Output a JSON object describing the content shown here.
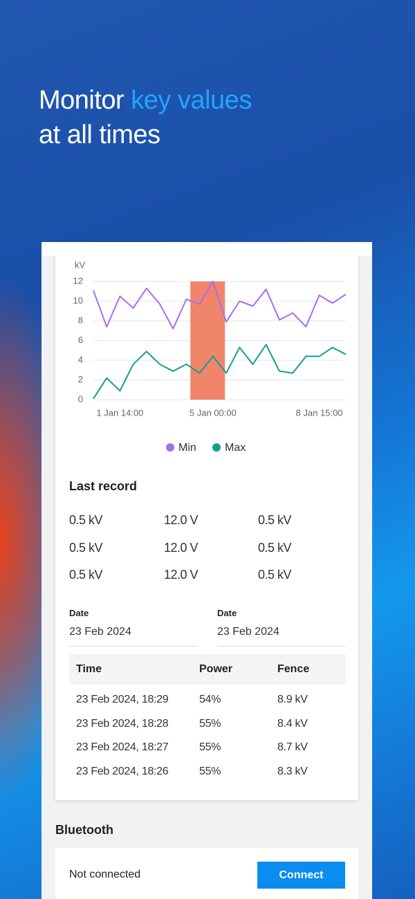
{
  "headline": {
    "lead": "Monitor",
    "highlight": "key values",
    "rest": "at all times"
  },
  "chart_data": {
    "type": "line",
    "y_label": "kV",
    "categories": [
      null,
      null,
      "1 Jan 14:00",
      null,
      null,
      null,
      null,
      null,
      null,
      "5 Jan 00:00",
      null,
      null,
      null,
      null,
      null,
      null,
      null,
      "8 Jan 15:00",
      null,
      null
    ],
    "series": [
      {
        "name": "Min",
        "color": "#a56ef0",
        "values": [
          11.1,
          7.4,
          10.5,
          9.3,
          11.3,
          9.7,
          7.2,
          10.2,
          9.7,
          12.0,
          7.9,
          10.0,
          9.5,
          11.2,
          8.1,
          8.8,
          7.4,
          10.6,
          9.8,
          10.7
        ]
      },
      {
        "name": "Max",
        "color": "#139e8d",
        "values": [
          0.1,
          2.2,
          0.9,
          3.6,
          4.9,
          3.6,
          2.9,
          3.6,
          2.7,
          4.4,
          2.7,
          5.3,
          3.6,
          5.6,
          2.9,
          2.7,
          4.4,
          4.4,
          5.3,
          4.6
        ]
      }
    ],
    "ylim": [
      0,
      12
    ],
    "yticks": [
      0,
      2,
      4,
      6,
      8,
      10,
      12
    ],
    "grid": true,
    "highlight": {
      "from": 7.3,
      "to": 9.9,
      "color": "#f0856a"
    }
  },
  "last_record": {
    "title": "Last record",
    "rows": [
      [
        "0.5 kV",
        "12.0 V",
        "0.5 kV"
      ],
      [
        "0.5 kV",
        "12.0 V",
        "0.5 kV"
      ],
      [
        "0.5 kV",
        "12.0 V",
        "0.5 kV"
      ]
    ]
  },
  "dates": [
    {
      "label": "Date",
      "value": "23 Feb 2024"
    },
    {
      "label": "Date",
      "value": "23 Feb 2024"
    }
  ],
  "table": {
    "headers": [
      "Time",
      "Power",
      "Fence"
    ],
    "rows": [
      [
        "23 Feb 2024, 18:29",
        "54%",
        "8.9 kV"
      ],
      [
        "23 Feb 2024, 18:28",
        "55%",
        "8.4 kV"
      ],
      [
        "23 Feb 2024, 18:27",
        "55%",
        "8.7 kV"
      ],
      [
        "23 Feb 2024, 18:26",
        "55%",
        "8.3 kV"
      ]
    ]
  },
  "bluetooth": {
    "title": "Bluetooth",
    "status": "Not connected",
    "button": "Connect"
  }
}
